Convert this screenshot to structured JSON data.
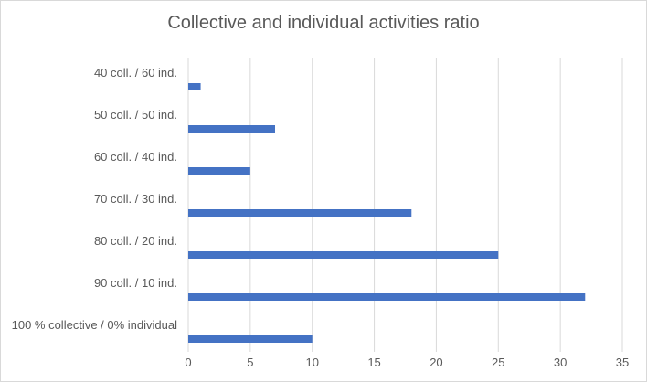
{
  "chart_data": {
    "type": "bar",
    "orientation": "horizontal",
    "title": "Collective and individual activities ratio",
    "xlabel": "",
    "ylabel": "",
    "categories": [
      "100 % collective / 0% individual",
      "90 coll. / 10 ind.",
      "80 coll. / 20 ind.",
      "70 coll. / 30 ind.",
      "60 coll. / 40 ind.",
      "50 coll. / 50 ind.",
      "40 coll. / 60 ind."
    ],
    "values": [
      10,
      32,
      25,
      18,
      5,
      7,
      1
    ],
    "xlim": [
      0,
      35
    ],
    "xticks": [
      0,
      5,
      10,
      15,
      20,
      25,
      30,
      35
    ],
    "grid": "vertical",
    "legend": "none",
    "colors": {
      "bar": "#4472c4",
      "grid": "#d9d9d9",
      "text": "#595959"
    }
  }
}
